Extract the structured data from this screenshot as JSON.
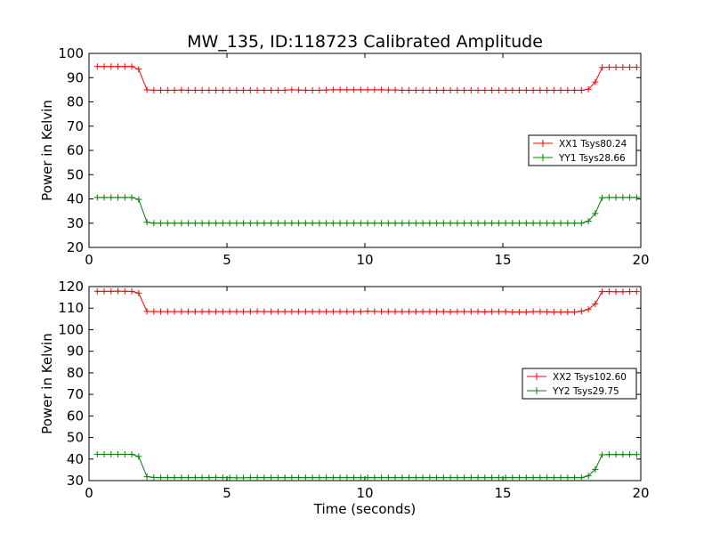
{
  "figure": {
    "title": "MW_135, ID:118723 Calibrated Amplitude",
    "xlabel": "Time (seconds)"
  },
  "chart_data": [
    {
      "type": "line",
      "title": "MW_135, ID:118723 Calibrated Amplitude",
      "xlabel": "",
      "ylabel": "Power in Kelvin",
      "xlim": [
        0,
        20
      ],
      "ylim": [
        20,
        100
      ],
      "xticks": [
        "0",
        "5",
        "10",
        "15",
        "20"
      ],
      "yticks": [
        "20",
        "30",
        "40",
        "50",
        "60",
        "70",
        "80",
        "90",
        "100"
      ],
      "grid": false,
      "legend_position": "center-right",
      "x": [
        0.3,
        0.55,
        0.8,
        1.05,
        1.3,
        1.55,
        1.8,
        2.1,
        2.35,
        2.6,
        2.85,
        3.1,
        3.35,
        3.6,
        3.85,
        4.1,
        4.35,
        4.6,
        4.85,
        5.1,
        5.35,
        5.6,
        5.85,
        6.1,
        6.35,
        6.6,
        6.85,
        7.1,
        7.35,
        7.6,
        7.85,
        8.1,
        8.35,
        8.6,
        8.85,
        9.1,
        9.35,
        9.6,
        9.85,
        10.1,
        10.35,
        10.6,
        10.85,
        11.1,
        11.35,
        11.6,
        11.85,
        12.1,
        12.35,
        12.6,
        12.85,
        13.1,
        13.35,
        13.6,
        13.85,
        14.1,
        14.35,
        14.6,
        14.85,
        15.1,
        15.35,
        15.6,
        15.85,
        16.1,
        16.35,
        16.6,
        16.85,
        17.1,
        17.35,
        17.6,
        17.85,
        18.1,
        18.35,
        18.6,
        18.85,
        19.1,
        19.35,
        19.6,
        19.85
      ],
      "series": [
        {
          "name": "XX1 Tsys80.24",
          "color": "#ff0000",
          "values": [
            94.6,
            94.6,
            94.6,
            94.6,
            94.6,
            94.6,
            93.5,
            85.0,
            84.8,
            84.8,
            84.8,
            84.8,
            84.9,
            84.8,
            84.8,
            84.8,
            84.8,
            84.8,
            84.8,
            84.8,
            84.8,
            84.8,
            84.8,
            84.8,
            84.8,
            84.8,
            84.8,
            84.8,
            85.0,
            84.9,
            84.8,
            84.8,
            84.8,
            84.9,
            85.0,
            85.0,
            85.0,
            85.0,
            85.0,
            85.0,
            85.0,
            85.0,
            84.9,
            84.9,
            84.8,
            84.8,
            84.8,
            84.8,
            84.8,
            84.8,
            84.8,
            84.8,
            84.8,
            84.8,
            84.8,
            84.8,
            84.8,
            84.8,
            84.8,
            84.8,
            84.8,
            84.8,
            84.8,
            84.8,
            84.8,
            84.8,
            84.8,
            84.8,
            84.8,
            84.8,
            84.8,
            85.2,
            88.2,
            94.2,
            94.3,
            94.3,
            94.3,
            94.3,
            94.3
          ]
        },
        {
          "name": "YY1 Tsys28.66",
          "color": "#008000",
          "values": [
            40.6,
            40.6,
            40.6,
            40.6,
            40.6,
            40.6,
            39.8,
            30.4,
            30.0,
            30.0,
            30.0,
            30.0,
            30.0,
            30.0,
            30.0,
            30.0,
            30.0,
            30.0,
            30.0,
            30.0,
            30.0,
            30.0,
            30.0,
            30.0,
            30.0,
            30.0,
            30.0,
            30.0,
            30.0,
            30.0,
            30.0,
            30.0,
            30.0,
            30.0,
            30.0,
            30.0,
            30.0,
            30.0,
            30.0,
            30.0,
            30.0,
            30.0,
            30.0,
            30.0,
            30.0,
            30.0,
            30.0,
            30.0,
            30.0,
            30.0,
            30.0,
            30.0,
            30.0,
            30.0,
            30.0,
            30.0,
            30.0,
            30.0,
            30.0,
            30.0,
            30.0,
            30.0,
            30.0,
            30.0,
            30.0,
            30.0,
            30.0,
            30.0,
            30.0,
            30.0,
            30.0,
            30.8,
            34.0,
            40.5,
            40.6,
            40.6,
            40.6,
            40.6,
            40.6
          ]
        }
      ]
    },
    {
      "type": "line",
      "title": "",
      "xlabel": "Time (seconds)",
      "ylabel": "Power in Kelvin",
      "xlim": [
        0,
        20
      ],
      "ylim": [
        30,
        120
      ],
      "xticks": [
        "0",
        "5",
        "10",
        "15",
        "20"
      ],
      "yticks": [
        "30",
        "40",
        "50",
        "60",
        "70",
        "80",
        "90",
        "100",
        "110",
        "120"
      ],
      "grid": false,
      "legend_position": "center-right",
      "x": [
        0.3,
        0.55,
        0.8,
        1.05,
        1.3,
        1.55,
        1.8,
        2.1,
        2.35,
        2.6,
        2.85,
        3.1,
        3.35,
        3.6,
        3.85,
        4.1,
        4.35,
        4.6,
        4.85,
        5.1,
        5.35,
        5.6,
        5.85,
        6.1,
        6.35,
        6.6,
        6.85,
        7.1,
        7.35,
        7.6,
        7.85,
        8.1,
        8.35,
        8.6,
        8.85,
        9.1,
        9.35,
        9.6,
        9.85,
        10.1,
        10.35,
        10.6,
        10.85,
        11.1,
        11.35,
        11.6,
        11.85,
        12.1,
        12.35,
        12.6,
        12.85,
        13.1,
        13.35,
        13.6,
        13.85,
        14.1,
        14.35,
        14.6,
        14.85,
        15.1,
        15.35,
        15.6,
        15.85,
        16.1,
        16.35,
        16.6,
        16.85,
        17.1,
        17.35,
        17.6,
        17.85,
        18.1,
        18.35,
        18.6,
        18.85,
        19.1,
        19.35,
        19.6,
        19.85
      ],
      "series": [
        {
          "name": "XX2 Tsys102.60",
          "color": "#ff0000",
          "values": [
            117.8,
            117.8,
            117.8,
            117.9,
            117.8,
            117.8,
            117.0,
            108.5,
            108.4,
            108.4,
            108.4,
            108.4,
            108.4,
            108.4,
            108.4,
            108.4,
            108.4,
            108.4,
            108.4,
            108.4,
            108.4,
            108.4,
            108.4,
            108.5,
            108.4,
            108.4,
            108.4,
            108.4,
            108.4,
            108.4,
            108.4,
            108.4,
            108.4,
            108.4,
            108.4,
            108.4,
            108.4,
            108.4,
            108.4,
            108.6,
            108.5,
            108.4,
            108.4,
            108.4,
            108.4,
            108.4,
            108.4,
            108.4,
            108.4,
            108.4,
            108.4,
            108.3,
            108.4,
            108.4,
            108.4,
            108.4,
            108.3,
            108.4,
            108.4,
            108.4,
            108.2,
            108.2,
            108.2,
            108.4,
            108.4,
            108.3,
            108.2,
            108.2,
            108.2,
            108.2,
            108.6,
            109.4,
            112.0,
            117.7,
            117.7,
            117.6,
            117.6,
            117.7,
            117.7
          ]
        },
        {
          "name": "YY2 Tsys29.75",
          "color": "#008000",
          "values": [
            42.2,
            42.2,
            42.2,
            42.2,
            42.2,
            42.2,
            41.2,
            31.8,
            31.5,
            31.4,
            31.4,
            31.4,
            31.4,
            31.4,
            31.4,
            31.4,
            31.4,
            31.5,
            31.4,
            31.4,
            31.3,
            31.3,
            31.4,
            31.4,
            31.4,
            31.4,
            31.4,
            31.4,
            31.4,
            31.4,
            31.4,
            31.4,
            31.4,
            31.4,
            31.4,
            31.4,
            31.4,
            31.4,
            31.4,
            31.4,
            31.4,
            31.4,
            31.4,
            31.4,
            31.4,
            31.4,
            31.4,
            31.4,
            31.4,
            31.4,
            31.4,
            31.4,
            31.4,
            31.4,
            31.4,
            31.4,
            31.4,
            31.4,
            31.4,
            31.4,
            31.4,
            31.4,
            31.4,
            31.4,
            31.4,
            31.4,
            31.4,
            31.4,
            31.4,
            31.4,
            31.4,
            32.2,
            35.2,
            42.0,
            42.1,
            42.1,
            42.1,
            42.1,
            42.1
          ]
        }
      ]
    }
  ]
}
